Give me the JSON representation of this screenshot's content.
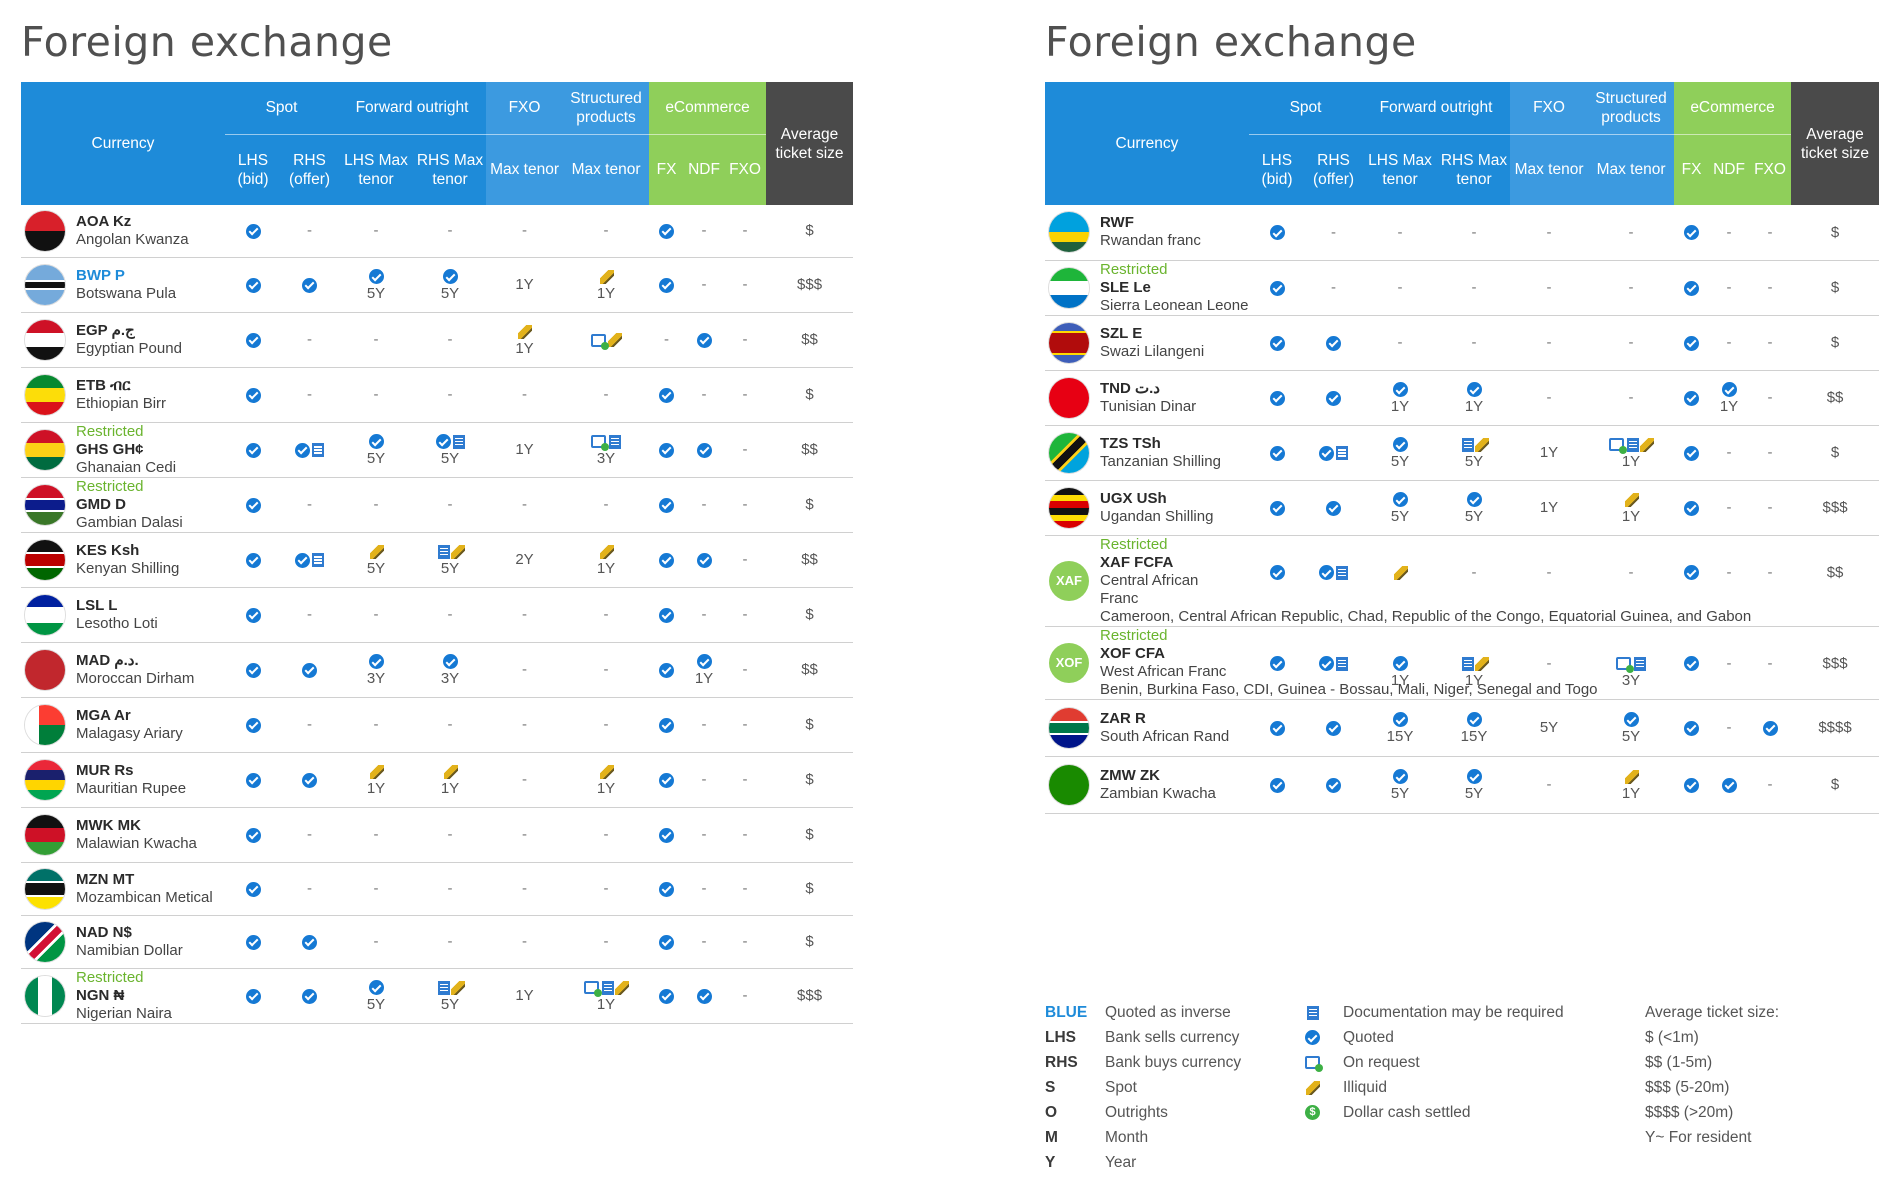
{
  "title_left": "Foreign exchange",
  "title_right": "Foreign exchange",
  "header": {
    "currency": "Currency",
    "spot": "Spot",
    "forward": "Forward outright",
    "fxo": "FXO",
    "structured": "Structured products",
    "ecommerce": "eCommerce",
    "avg": "Average ticket size",
    "lhs": "LHS (bid)",
    "rhs": "RHS (offer)",
    "lhs_max": "LHS Max tenor",
    "rhs_max": "RHS Max tenor",
    "max_tenor": "Max tenor",
    "fx": "FX",
    "ndf": "NDF",
    "fxo_e": "FXO"
  },
  "colors": {
    "blue": "#1e8bd9",
    "green": "#8fcf5a",
    "dark": "#4a4a4a",
    "check": "#1579d4"
  },
  "left_rows": [
    {
      "code": "AOA Kz",
      "name": "Angolan Kwanza",
      "restricted": "",
      "inverse": false,
      "flag": "angola",
      "cells": [
        [
          "chk",
          ""
        ],
        [
          "-",
          ""
        ],
        [
          "-",
          ""
        ],
        [
          "-",
          ""
        ],
        [
          "-",
          ""
        ],
        [
          "-",
          ""
        ],
        [
          "chk",
          ""
        ],
        [
          "-",
          ""
        ],
        [
          "-",
          ""
        ],
        [
          "$",
          ""
        ]
      ]
    },
    {
      "code": "BWP P",
      "name": "Botswana Pula",
      "restricted": "",
      "inverse": true,
      "flag": "botswana",
      "cells": [
        [
          "chk",
          ""
        ],
        [
          "chk",
          ""
        ],
        [
          "chk",
          "5Y"
        ],
        [
          "chk",
          "5Y"
        ],
        [
          "",
          "1Y"
        ],
        [
          "ill",
          "1Y"
        ],
        [
          "chk",
          ""
        ],
        [
          "-",
          ""
        ],
        [
          "-",
          ""
        ],
        [
          "$$$",
          ""
        ]
      ]
    },
    {
      "code": "EGP ج.م",
      "name": "Egyptian Pound",
      "restricted": "",
      "inverse": false,
      "flag": "egypt",
      "cells": [
        [
          "chk",
          ""
        ],
        [
          "-",
          ""
        ],
        [
          "-",
          ""
        ],
        [
          "-",
          ""
        ],
        [
          "ill",
          "1Y"
        ],
        [
          "req ill",
          ""
        ],
        [
          "-",
          ""
        ],
        [
          "chk",
          ""
        ],
        [
          "-",
          ""
        ],
        [
          "$$",
          ""
        ]
      ]
    },
    {
      "code": "ETB ብር",
      "name": "Ethiopian Birr",
      "restricted": "",
      "inverse": false,
      "flag": "ethiopia",
      "cells": [
        [
          "chk",
          ""
        ],
        [
          "-",
          ""
        ],
        [
          "-",
          ""
        ],
        [
          "-",
          ""
        ],
        [
          "-",
          ""
        ],
        [
          "-",
          ""
        ],
        [
          "chk",
          ""
        ],
        [
          "-",
          ""
        ],
        [
          "-",
          ""
        ],
        [
          "$",
          ""
        ]
      ]
    },
    {
      "code": "GHS GH¢",
      "name": "Ghanaian Cedi",
      "restricted": "Restricted",
      "inverse": false,
      "flag": "ghana",
      "cells": [
        [
          "chk",
          ""
        ],
        [
          "chk doc",
          ""
        ],
        [
          "chk",
          "5Y"
        ],
        [
          "chk doc",
          "5Y"
        ],
        [
          "",
          "1Y"
        ],
        [
          "req doc",
          "3Y"
        ],
        [
          "chk",
          ""
        ],
        [
          "chk",
          ""
        ],
        [
          "-",
          ""
        ],
        [
          "$$",
          ""
        ]
      ]
    },
    {
      "code": "GMD D",
      "name": "Gambian Dalasi",
      "restricted": "Restricted",
      "inverse": false,
      "flag": "gambia",
      "cells": [
        [
          "chk",
          ""
        ],
        [
          "-",
          ""
        ],
        [
          "-",
          ""
        ],
        [
          "-",
          ""
        ],
        [
          "-",
          ""
        ],
        [
          "-",
          ""
        ],
        [
          "chk",
          ""
        ],
        [
          "-",
          ""
        ],
        [
          "-",
          ""
        ],
        [
          "$",
          ""
        ]
      ]
    },
    {
      "code": "KES Ksh",
      "name": "Kenyan Shilling",
      "restricted": "",
      "inverse": false,
      "flag": "kenya",
      "cells": [
        [
          "chk",
          ""
        ],
        [
          "chk doc",
          ""
        ],
        [
          "ill",
          "5Y"
        ],
        [
          "doc ill",
          "5Y"
        ],
        [
          "",
          "2Y"
        ],
        [
          "ill",
          "1Y"
        ],
        [
          "chk",
          ""
        ],
        [
          "chk",
          ""
        ],
        [
          "-",
          ""
        ],
        [
          "$$",
          ""
        ]
      ]
    },
    {
      "code": "LSL L",
      "name": "Lesotho Loti",
      "restricted": "",
      "inverse": false,
      "flag": "lesotho",
      "cells": [
        [
          "chk",
          ""
        ],
        [
          "-",
          ""
        ],
        [
          "-",
          ""
        ],
        [
          "-",
          ""
        ],
        [
          "-",
          ""
        ],
        [
          "-",
          ""
        ],
        [
          "chk",
          ""
        ],
        [
          "-",
          ""
        ],
        [
          "-",
          ""
        ],
        [
          "$",
          ""
        ]
      ]
    },
    {
      "code": "MAD د.م.",
      "name": "Moroccan Dirham",
      "restricted": "",
      "inverse": false,
      "flag": "morocco",
      "cells": [
        [
          "chk",
          ""
        ],
        [
          "chk",
          ""
        ],
        [
          "chk",
          "3Y"
        ],
        [
          "chk",
          "3Y"
        ],
        [
          "-",
          ""
        ],
        [
          "-",
          ""
        ],
        [
          "chk",
          ""
        ],
        [
          "chk",
          "1Y"
        ],
        [
          "-",
          ""
        ],
        [
          "$$",
          ""
        ]
      ]
    },
    {
      "code": "MGA Ar",
      "name": "Malagasy Ariary",
      "restricted": "",
      "inverse": false,
      "flag": "madagascar",
      "cells": [
        [
          "chk",
          ""
        ],
        [
          "-",
          ""
        ],
        [
          "-",
          ""
        ],
        [
          "-",
          ""
        ],
        [
          "-",
          ""
        ],
        [
          "-",
          ""
        ],
        [
          "chk",
          ""
        ],
        [
          "-",
          ""
        ],
        [
          "-",
          ""
        ],
        [
          "$",
          ""
        ]
      ]
    },
    {
      "code": "MUR Rs",
      "name": "Mauritian Rupee",
      "restricted": "",
      "inverse": false,
      "flag": "mauritius",
      "cells": [
        [
          "chk",
          ""
        ],
        [
          "chk",
          ""
        ],
        [
          "ill",
          "1Y"
        ],
        [
          "ill",
          "1Y"
        ],
        [
          "-",
          ""
        ],
        [
          "ill",
          "1Y"
        ],
        [
          "chk",
          ""
        ],
        [
          "-",
          ""
        ],
        [
          "-",
          ""
        ],
        [
          "$",
          ""
        ]
      ]
    },
    {
      "code": "MWK MK",
      "name": "Malawian Kwacha",
      "restricted": "",
      "inverse": false,
      "flag": "malawi",
      "cells": [
        [
          "chk",
          ""
        ],
        [
          "-",
          ""
        ],
        [
          "-",
          ""
        ],
        [
          "-",
          ""
        ],
        [
          "-",
          ""
        ],
        [
          "-",
          ""
        ],
        [
          "chk",
          ""
        ],
        [
          "-",
          ""
        ],
        [
          "-",
          ""
        ],
        [
          "$",
          ""
        ]
      ]
    },
    {
      "code": "MZN MT",
      "name": "Mozambican Metical",
      "restricted": "",
      "inverse": false,
      "flag": "mozambique",
      "cells": [
        [
          "chk",
          ""
        ],
        [
          "-",
          ""
        ],
        [
          "-",
          ""
        ],
        [
          "-",
          ""
        ],
        [
          "-",
          ""
        ],
        [
          "-",
          ""
        ],
        [
          "chk",
          ""
        ],
        [
          "-",
          ""
        ],
        [
          "-",
          ""
        ],
        [
          "$",
          ""
        ]
      ]
    },
    {
      "code": "NAD N$",
      "name": "Namibian Dollar",
      "restricted": "",
      "inverse": false,
      "flag": "namibia",
      "cells": [
        [
          "chk",
          ""
        ],
        [
          "chk",
          ""
        ],
        [
          "-",
          ""
        ],
        [
          "-",
          ""
        ],
        [
          "-",
          ""
        ],
        [
          "-",
          ""
        ],
        [
          "chk",
          ""
        ],
        [
          "-",
          ""
        ],
        [
          "-",
          ""
        ],
        [
          "$",
          ""
        ]
      ]
    },
    {
      "code": "NGN ₦",
      "name": "Nigerian Naira",
      "restricted": "Restricted",
      "inverse": false,
      "flag": "nigeria",
      "cells": [
        [
          "chk",
          ""
        ],
        [
          "chk",
          ""
        ],
        [
          "chk",
          "5Y"
        ],
        [
          "doc ill",
          "5Y"
        ],
        [
          "",
          "1Y"
        ],
        [
          "req doc ill",
          "1Y"
        ],
        [
          "chk",
          ""
        ],
        [
          "chk",
          ""
        ],
        [
          "-",
          ""
        ],
        [
          "$$$",
          ""
        ]
      ]
    }
  ],
  "right_rows": [
    {
      "code": "RWF",
      "name": "Rwandan franc",
      "restricted": "",
      "inverse": false,
      "flag": "rwanda",
      "extra": "",
      "cells": [
        [
          "chk",
          ""
        ],
        [
          "-",
          ""
        ],
        [
          "-",
          ""
        ],
        [
          "-",
          ""
        ],
        [
          "-",
          ""
        ],
        [
          "-",
          ""
        ],
        [
          "chk",
          ""
        ],
        [
          "-",
          ""
        ],
        [
          "-",
          ""
        ],
        [
          "$",
          ""
        ]
      ]
    },
    {
      "code": "SLE Le",
      "name": "Sierra Leonean Leone",
      "restricted": "Restricted",
      "inverse": false,
      "flag": "sierraleone",
      "extra": "",
      "cells": [
        [
          "chk",
          ""
        ],
        [
          "-",
          ""
        ],
        [
          "-",
          ""
        ],
        [
          "-",
          ""
        ],
        [
          "-",
          ""
        ],
        [
          "-",
          ""
        ],
        [
          "chk",
          ""
        ],
        [
          "-",
          ""
        ],
        [
          "-",
          ""
        ],
        [
          "$",
          ""
        ]
      ]
    },
    {
      "code": "SZL E",
      "name": "Swazi Lilangeni",
      "restricted": "",
      "inverse": false,
      "flag": "eswatini",
      "extra": "",
      "cells": [
        [
          "chk",
          ""
        ],
        [
          "chk",
          ""
        ],
        [
          "-",
          ""
        ],
        [
          "-",
          ""
        ],
        [
          "-",
          ""
        ],
        [
          "-",
          ""
        ],
        [
          "chk",
          ""
        ],
        [
          "-",
          ""
        ],
        [
          "-",
          ""
        ],
        [
          "$",
          ""
        ]
      ]
    },
    {
      "code": "TND د.ت",
      "name": "Tunisian Dinar",
      "restricted": "",
      "inverse": false,
      "flag": "tunisia",
      "extra": "",
      "cells": [
        [
          "chk",
          ""
        ],
        [
          "chk",
          ""
        ],
        [
          "chk",
          "1Y"
        ],
        [
          "chk",
          "1Y"
        ],
        [
          "-",
          ""
        ],
        [
          "-",
          ""
        ],
        [
          "chk",
          ""
        ],
        [
          "chk",
          "1Y"
        ],
        [
          "-",
          ""
        ],
        [
          "$$",
          ""
        ]
      ]
    },
    {
      "code": "TZS TSh",
      "name": "Tanzanian Shilling",
      "restricted": "",
      "inverse": false,
      "flag": "tanzania",
      "extra": "",
      "cells": [
        [
          "chk",
          ""
        ],
        [
          "chk doc",
          ""
        ],
        [
          "chk",
          "5Y"
        ],
        [
          "doc ill",
          "5Y"
        ],
        [
          "",
          "1Y"
        ],
        [
          "req doc ill",
          "1Y"
        ],
        [
          "chk",
          ""
        ],
        [
          "-",
          ""
        ],
        [
          "-",
          ""
        ],
        [
          "$",
          ""
        ]
      ]
    },
    {
      "code": "UGX USh",
      "name": "Ugandan Shilling",
      "restricted": "",
      "inverse": false,
      "flag": "uganda",
      "extra": "",
      "cells": [
        [
          "chk",
          ""
        ],
        [
          "chk",
          ""
        ],
        [
          "chk",
          "5Y"
        ],
        [
          "chk",
          "5Y"
        ],
        [
          "",
          "1Y"
        ],
        [
          "ill",
          "1Y"
        ],
        [
          "chk",
          ""
        ],
        [
          "-",
          ""
        ],
        [
          "-",
          ""
        ],
        [
          "$$$",
          ""
        ]
      ]
    },
    {
      "code": "XAF FCFA",
      "name": "Central African Franc",
      "restricted": "Restricted",
      "inverse": false,
      "flag": "xaf",
      "extra": "Cameroon, Central African Republic, Chad, Republic of the Congo, Equatorial Guinea, and Gabon",
      "cells": [
        [
          "chk",
          ""
        ],
        [
          "chk doc",
          ""
        ],
        [
          "ill",
          ""
        ],
        [
          "-",
          ""
        ],
        [
          "-",
          ""
        ],
        [
          "-",
          ""
        ],
        [
          "chk",
          ""
        ],
        [
          "-",
          ""
        ],
        [
          "-",
          ""
        ],
        [
          "$$",
          ""
        ]
      ]
    },
    {
      "code": "XOF CFA",
      "name": "West African Franc",
      "restricted": "Restricted",
      "inverse": false,
      "flag": "xof",
      "extra": "Benin, Burkina Faso, CDI, Guinea - Bossau, Mali, Niger, Senegal and Togo",
      "cells": [
        [
          "chk",
          ""
        ],
        [
          "chk doc",
          ""
        ],
        [
          "chk",
          "1Y"
        ],
        [
          "doc ill",
          "1Y"
        ],
        [
          "-",
          ""
        ],
        [
          "req doc",
          "3Y"
        ],
        [
          "chk",
          ""
        ],
        [
          "-",
          ""
        ],
        [
          "-",
          ""
        ],
        [
          "$$$",
          ""
        ]
      ]
    },
    {
      "code": "ZAR R",
      "name": "South African Rand",
      "restricted": "",
      "inverse": false,
      "flag": "southafrica",
      "extra": "",
      "cells": [
        [
          "chk",
          ""
        ],
        [
          "chk",
          ""
        ],
        [
          "chk",
          "15Y"
        ],
        [
          "chk",
          "15Y"
        ],
        [
          "",
          "5Y"
        ],
        [
          "chk",
          "5Y"
        ],
        [
          "chk",
          ""
        ],
        [
          "-",
          ""
        ],
        [
          "chk",
          ""
        ],
        [
          "$$$$",
          ""
        ]
      ]
    },
    {
      "code": "ZMW ZK",
      "name": "Zambian Kwacha",
      "restricted": "",
      "inverse": false,
      "flag": "zambia",
      "extra": "",
      "cells": [
        [
          "chk",
          ""
        ],
        [
          "chk",
          ""
        ],
        [
          "chk",
          "5Y"
        ],
        [
          "chk",
          "5Y"
        ],
        [
          "-",
          ""
        ],
        [
          "ill",
          "1Y"
        ],
        [
          "chk",
          ""
        ],
        [
          "chk",
          ""
        ],
        [
          "-",
          ""
        ],
        [
          "$",
          ""
        ]
      ]
    }
  ],
  "legend": {
    "col1": [
      [
        "BLUE",
        "Quoted as inverse"
      ],
      [
        "LHS",
        "Bank sells currency"
      ],
      [
        "RHS",
        "Bank buys currency"
      ],
      [
        "S",
        "Spot"
      ],
      [
        "O",
        "Outrights"
      ],
      [
        "M",
        "Month"
      ],
      [
        "Y",
        "Year"
      ]
    ],
    "col2": [
      [
        "doc",
        "Documentation may be required"
      ],
      [
        "chk",
        "Quoted"
      ],
      [
        "req",
        "On request"
      ],
      [
        "ill",
        "Illiquid"
      ],
      [
        "cash",
        "Dollar cash settled"
      ]
    ],
    "col3": [
      "Average ticket size:",
      "$ (<1m)",
      "$$ (1-5m)",
      "$$$ (5-20m)",
      "$$$$ (>20m)",
      "Y~ For resident"
    ]
  }
}
